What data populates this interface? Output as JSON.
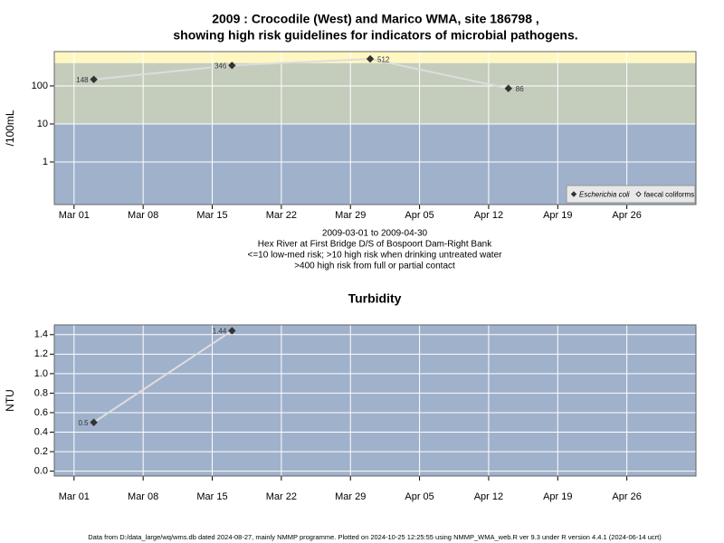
{
  "chart_data": [
    {
      "type": "line",
      "title": "2009 : Crocodile (West) and Marico WMA, site 186798 ,",
      "subtitle": "showing high risk guidelines for indicators of microbial pathogens.",
      "ylabel": "/100mL",
      "log_scale": true,
      "x": [
        "2009-03-03",
        "2009-03-17",
        "2009-03-31",
        "2009-04-14"
      ],
      "xlim": [
        "2009-02-27",
        "2009-05-03"
      ],
      "xticks": [
        {
          "value": "2009-03-01",
          "label": "Mar 01"
        },
        {
          "value": "2009-03-08",
          "label": "Mar 08"
        },
        {
          "value": "2009-03-15",
          "label": "Mar 15"
        },
        {
          "value": "2009-03-22",
          "label": "Mar 22"
        },
        {
          "value": "2009-03-29",
          "label": "Mar 29"
        },
        {
          "value": "2009-04-05",
          "label": "Apr 05"
        },
        {
          "value": "2009-04-12",
          "label": "Apr 12"
        },
        {
          "value": "2009-04-19",
          "label": "Apr 19"
        },
        {
          "value": "2009-04-26",
          "label": "Apr 26"
        }
      ],
      "ylim": [
        0.076,
        800
      ],
      "yticks": [
        1,
        10,
        100
      ],
      "grid": true,
      "band_breaks": [
        10,
        400
      ],
      "band_colors": [
        "#a0b1cb",
        "#c4ccbc",
        "#fff7c2"
      ],
      "series": [
        {
          "name": "Escherichia coli",
          "color": "#333333",
          "marker": "diamond-filled",
          "line_color": "#dddddd",
          "values": [
            148,
            346,
            512,
            86
          ]
        },
        {
          "name": "faecal coliforms",
          "color": "#333333",
          "marker": "diamond-open",
          "line_color": "#dddddd",
          "values": [
            null,
            null,
            null,
            null
          ]
        }
      ],
      "legend": "bottom-right",
      "notes": [
        "2009-03-01 to 2009-04-30",
        "Hex River at First Bridge D/S of Bospoort Dam-Right Bank",
        "<=10 low-med risk; >10 high risk when drinking untreated water",
        ">400 high risk from full or partial contact"
      ]
    },
    {
      "type": "line",
      "title": "Turbidity",
      "ylabel": "NTU",
      "log_scale": false,
      "x": [
        "2009-03-03",
        "2009-03-17"
      ],
      "xlim": [
        "2009-02-27",
        "2009-05-03"
      ],
      "xticks": [
        {
          "value": "2009-03-01",
          "label": "Mar 01"
        },
        {
          "value": "2009-03-08",
          "label": "Mar 08"
        },
        {
          "value": "2009-03-15",
          "label": "Mar 15"
        },
        {
          "value": "2009-03-22",
          "label": "Mar 22"
        },
        {
          "value": "2009-03-29",
          "label": "Mar 29"
        },
        {
          "value": "2009-04-05",
          "label": "Apr 05"
        },
        {
          "value": "2009-04-12",
          "label": "Apr 12"
        },
        {
          "value": "2009-04-19",
          "label": "Apr 19"
        },
        {
          "value": "2009-04-26",
          "label": "Apr 26"
        }
      ],
      "ylim": [
        -0.05,
        1.5
      ],
      "yticks": [
        {
          "value": 0,
          "label": "0.0"
        },
        0.2,
        0.4,
        0.6,
        0.8,
        {
          "value": 1,
          "label": "1.0"
        },
        1.2,
        1.4
      ],
      "grid": true,
      "background": "#a0b1cb",
      "series": [
        {
          "name": "Turbidity",
          "color": "#333333",
          "marker": "diamond-filled",
          "line_color": "#dddddd",
          "values": [
            0.5,
            1.44
          ]
        }
      ]
    }
  ],
  "footer": "Data from D:/data_large/wq/wms.db dated 2024-08-27, mainly NMMP programme. Plotted on 2024-10-25 12:25:55 using NMMP_WMA_web.R ver 9.3 under R version 4.4.1 (2024-06-14 ucrt)"
}
